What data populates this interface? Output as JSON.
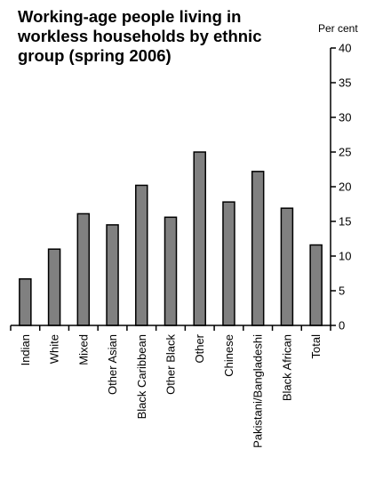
{
  "chart_data": {
    "type": "bar",
    "title": "Working-age people living in workless households by ethnic group (spring 2006)",
    "unit_label": "Per cent",
    "categories": [
      "Indian",
      "White",
      "Mixed",
      "Other Asian",
      "Black Caribbean",
      "Other Black",
      "Other",
      "Chinese",
      "Pakistani/Bangladeshi",
      "Black African",
      "Total"
    ],
    "values": [
      6.7,
      11.0,
      16.1,
      14.5,
      20.2,
      15.6,
      25.0,
      17.8,
      22.2,
      16.9,
      11.6
    ],
    "ylim": [
      0,
      40
    ],
    "yticks": [
      0,
      5,
      10,
      15,
      20,
      25,
      30,
      35,
      40
    ],
    "y_axis_position": "right",
    "grid": false,
    "bar_color": "#808080",
    "bar_edge_color": "#000000"
  }
}
